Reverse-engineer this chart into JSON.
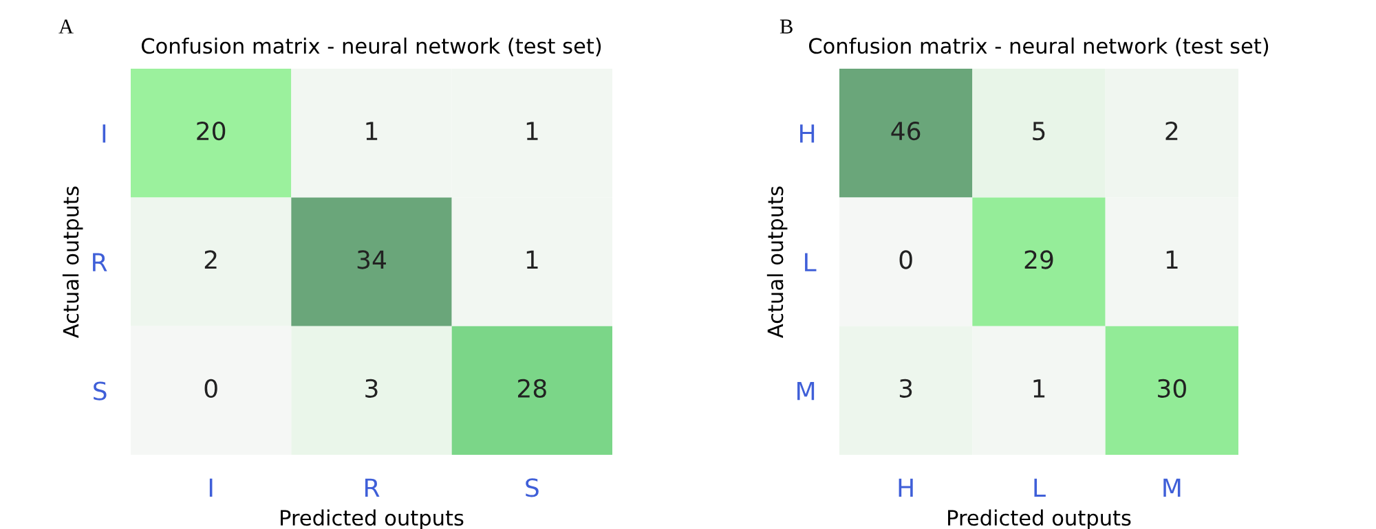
{
  "chart_data": [
    {
      "type": "heatmap",
      "title": "Confusion matrix - neural network (test set)",
      "xlabel": "Predicted outputs",
      "ylabel": "Actual outputs",
      "annotations": [
        "A"
      ],
      "categories": [
        "I",
        "R",
        "S"
      ],
      "y_categories": [
        "I",
        "R",
        "S"
      ],
      "data_labels": true,
      "cells": [
        [
          20,
          1,
          1
        ],
        [
          2,
          34,
          1
        ],
        [
          0,
          3,
          28
        ]
      ]
    },
    {
      "type": "heatmap",
      "title": "Confusion matrix - neural network (test set)",
      "xlabel": "Predicted outputs",
      "ylabel": "Actual outputs",
      "annotations": [
        "B"
      ],
      "categories": [
        "H",
        "L",
        "M"
      ],
      "y_categories": [
        "H",
        "L",
        "M"
      ],
      "data_labels": true,
      "cells": [
        [
          46,
          5,
          2
        ],
        [
          0,
          29,
          1
        ],
        [
          3,
          1,
          30
        ]
      ]
    }
  ]
}
